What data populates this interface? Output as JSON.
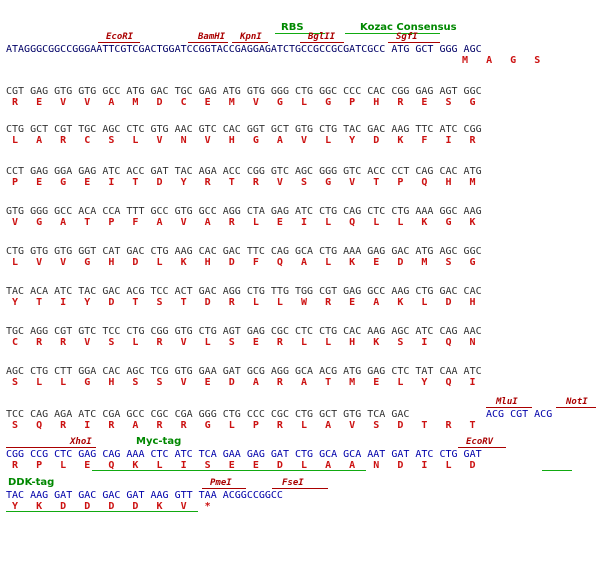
{
  "features": {
    "rbs": "RBS",
    "kozak": "Kozac Consensus",
    "myc_tag": "Myc-tag",
    "ddk_tag": "DDK-tag"
  },
  "sites": {
    "ecori": "EcoRI",
    "bamhi": "BamHI",
    "kpni": "KpnI",
    "bglii": "BglII",
    "sgfi": "SgfI",
    "mlui": "MluI",
    "noti": "NotI",
    "xhoi": "XhoI",
    "ecorv": "EcoRV",
    "pmei": "PmeI",
    "fsei": "FseI"
  },
  "lines": {
    "l1_dna": "ATAGGGCGGCCGGGAATTCGTCGACTGGATCCGGTACCGAGGAGATCTGCCGCCGCGATCGCC ATG GCT GGG AGC",
    "l1_aa": "M   A   G   S",
    "l2_dna": "CGT GAG GTG GTG GCC ATG GAC TGC GAG ATG GTG GGG CTG GGC CCC CAC CGG GAG AGT GGC",
    "l2_aa": "R   E   V   V   A   M   D   C   E   M   V   G   L   G   P   H   R   E   S   G",
    "l3_dna": "CTG GCT CGT TGC AGC CTC GTG AAC GTC CAC GGT GCT GTG CTG TAC GAC AAG TTC ATC CGG",
    "l3_aa": "L   A   R   C   S   L   V   N   V   H   G   A   V   L   Y   D   K   F   I   R",
    "l4_dna": "CCT GAG GGA GAG ATC ACC GAT TAC AGA ACC CGG GTC AGC GGG GTC ACC CCT CAG CAC ATG",
    "l4_aa": "P   E   G   E   I   T   D   Y   R   T   R   V   S   G   V   T   P   Q   H   M",
    "l5_dna": "GTG GGG GCC ACA CCA TTT GCC GTG GCC AGG CTA GAG ATC CTG CAG CTC CTG AAA GGC AAG",
    "l5_aa": "V   G   A   T   P   F   A   V   A   R   L   E   I   L   Q   L   L   K   G   K",
    "l6_dna": "CTG GTG GTG GGT CAT GAC CTG AAG CAC GAC TTC CAG GCA CTG AAA GAG GAC ATG AGC GGC",
    "l6_aa": "L   V   V   G   H   D   L   K   H   D   F   Q   A   L   K   E   D   M   S   G",
    "l7_dna": "TAC ACA ATC TAC GAC ACG TCC ACT GAC AGG CTG TTG TGG CGT GAG GCC AAG CTG GAC CAC",
    "l7_aa": "Y   T   I   Y   D   T   S   T   D   R   L   L   W   R   E   A   K   L   D   H",
    "l8_dna": "TGC AGG CGT GTC TCC CTG CGG GTG CTG AGT GAG CGC CTC CTG CAC AAG AGC ATC CAG AAC",
    "l8_aa": "C   R   R   V   S   L   R   V   L   S   E   R   L   L   H   K   S   I   Q   N",
    "l9_dna": "AGC CTG CTT GGA CAC AGC TCG GTG GAA GAT GCG AGG GCA ACG ATG GAG CTC TAT CAA ATC",
    "l9_aa": "S   L   L   G   H   S   S   V   E   D   A   R   A   T   M   E   L   Y   Q   I",
    "l10_dna": "TCC CAG AGA ATC CGA GCC CGC CGA GGG CTG CCC CGC CTG GCT GTG TCA GAC",
    "l10_vec": "ACG CGT ACG",
    "l10_aa": "S   Q   R   I   R   A   R   R   G   L   P   R   L   A   V   S   D   T   R   T",
    "l11_dna": "CGG CCG CTC GAG CAG AAA CTC ATC TCA GAA GAG GAT CTG GCA GCA AAT GAT ATC CTG GAT",
    "l11_aa": "R   P   L   E   Q   K   L   I   S   E   E   D   L   A   A   N   D   I   L   D",
    "l12_dna": "TAC AAG GAT GAC GAC GAT AAG GTT TAA ACGGCCGGCC",
    "l12_aa": "Y   K   D   D   D   D   K   V   *"
  }
}
